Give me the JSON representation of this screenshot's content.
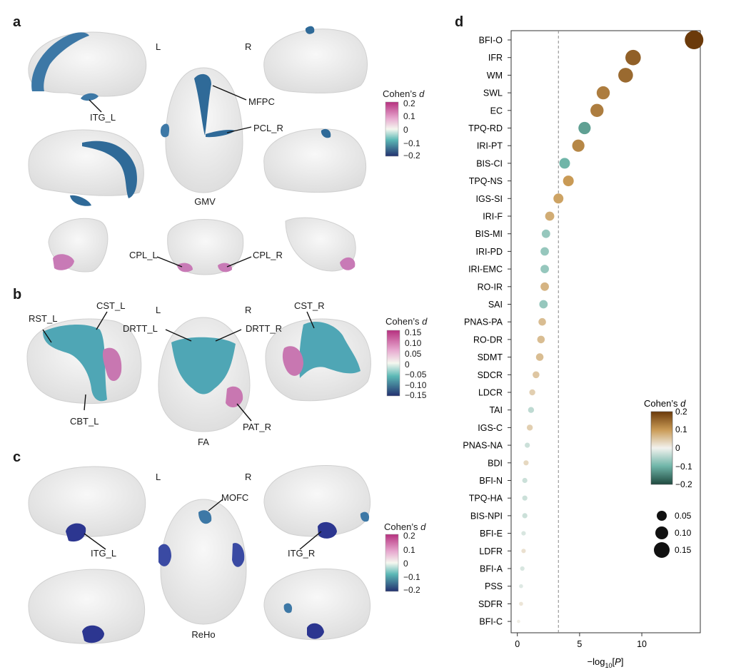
{
  "panels": {
    "a": {
      "letter": "a",
      "hemi_left": "L",
      "hemi_right": "R",
      "modality": "GMV",
      "region_labels": [
        "ITG_L",
        "MFPC",
        "PCL_R",
        "CPL_L",
        "CPL_R"
      ],
      "colorbar": {
        "title": "Cohen’s ",
        "title_italic": "d",
        "ticks": [
          "0.2",
          "0.1",
          "0",
          "−0.1",
          "−0.2"
        ]
      }
    },
    "b": {
      "letter": "b",
      "hemi_left": "L",
      "hemi_right": "R",
      "modality": "FA",
      "region_labels": [
        "RST_L",
        "CST_L",
        "DRTT_L",
        "DRTT_R",
        "CST_R",
        "CBT_L",
        "PAT_R"
      ],
      "colorbar": {
        "title": "Cohen’s ",
        "title_italic": "d",
        "ticks": [
          "0.15",
          "0.10",
          "0.05",
          "0",
          "−0.05",
          "−0.10",
          "−0.15"
        ]
      }
    },
    "c": {
      "letter": "c",
      "hemi_left": "L",
      "hemi_right": "R",
      "modality": "ReHo",
      "region_labels": [
        "MOFC",
        "ITG_L",
        "ITG_R"
      ],
      "colorbar": {
        "title": "Cohen’s ",
        "title_italic": "d",
        "ticks": [
          "0.2",
          "0.1",
          "0",
          "−0.1",
          "−0.2"
        ]
      }
    },
    "d": {
      "letter": "d",
      "xlabel_prefix": "−log",
      "xlabel_sub": "10",
      "xlabel_var": "P",
      "legend_color_title": "Cohen’s ",
      "legend_color_title_italic": "d",
      "legend_color_ticks": [
        "0.2",
        "0.1",
        "0",
        "−0.1",
        "−0.2"
      ],
      "legend_size_labels": [
        "0.05",
        "0.10",
        "0.15"
      ]
    }
  },
  "chart_data": {
    "type": "scatter",
    "xlabel": "−log10[P]",
    "xlim": [
      -0.5,
      14.7
    ],
    "xticks": [
      0,
      5,
      10
    ],
    "threshold_line_x": 3.3,
    "color_scale": {
      "name": "Cohen’s d",
      "range": [
        -0.2,
        0.2
      ],
      "low": "#1f4a40",
      "mid": "#f2f2ee",
      "high": "#6b3a0a"
    },
    "size_scale": {
      "name": "|Cohen’s d|",
      "values": [
        0.05,
        0.1,
        0.15
      ]
    },
    "categories": [
      "BFI-O",
      "IFR",
      "WM",
      "SWL",
      "EC",
      "TPQ-RD",
      "IRI-PT",
      "BIS-CI",
      "TPQ-NS",
      "IGS-SI",
      "IRI-F",
      "BIS-MI",
      "IRI-PD",
      "IRI-EMC",
      "RO-IR",
      "SAI",
      "PNAS-PA",
      "RO-DR",
      "SDMT",
      "SDCR",
      "LDCR",
      "TAI",
      "IGS-C",
      "PNAS-NA",
      "BDI",
      "BFI-N",
      "TPQ-HA",
      "BIS-NPI",
      "BFI-E",
      "LDFR",
      "BFI-A",
      "PSS",
      "SDFR",
      "BFI-C"
    ],
    "x": [
      14.2,
      9.3,
      8.7,
      6.9,
      6.4,
      5.4,
      4.9,
      3.8,
      4.1,
      3.3,
      2.6,
      2.3,
      2.2,
      2.2,
      2.2,
      2.1,
      2.0,
      1.9,
      1.8,
      1.5,
      1.2,
      1.1,
      1.0,
      0.8,
      0.7,
      0.6,
      0.6,
      0.6,
      0.5,
      0.5,
      0.4,
      0.3,
      0.3,
      0.1
    ],
    "cohens_d": [
      0.2,
      0.16,
      0.15,
      0.13,
      0.13,
      -0.12,
      0.12,
      -0.1,
      0.1,
      0.09,
      0.08,
      -0.07,
      -0.07,
      -0.07,
      0.07,
      -0.07,
      0.06,
      0.06,
      0.06,
      0.05,
      0.04,
      -0.04,
      0.04,
      -0.03,
      0.03,
      -0.03,
      -0.03,
      -0.03,
      -0.02,
      0.02,
      -0.02,
      -0.015,
      0.015,
      0.005
    ]
  }
}
